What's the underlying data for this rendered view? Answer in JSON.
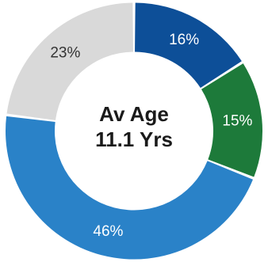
{
  "chart_data": {
    "type": "pie",
    "variant": "donut",
    "slices": [
      {
        "label": "16%",
        "value": 16,
        "color": "#0d4f98",
        "text_color": "#ffffff"
      },
      {
        "label": "15%",
        "value": 15,
        "color": "#1d7a3a",
        "text_color": "#ffffff"
      },
      {
        "label": "46%",
        "value": 46,
        "color": "#2a82c8",
        "text_color": "#ffffff"
      },
      {
        "label": "23%",
        "value": 23,
        "color": "#d9d9d9",
        "text_color": "#333333"
      }
    ],
    "center_text": {
      "line1": "Av Age",
      "line2": "11.1 Yrs"
    }
  }
}
